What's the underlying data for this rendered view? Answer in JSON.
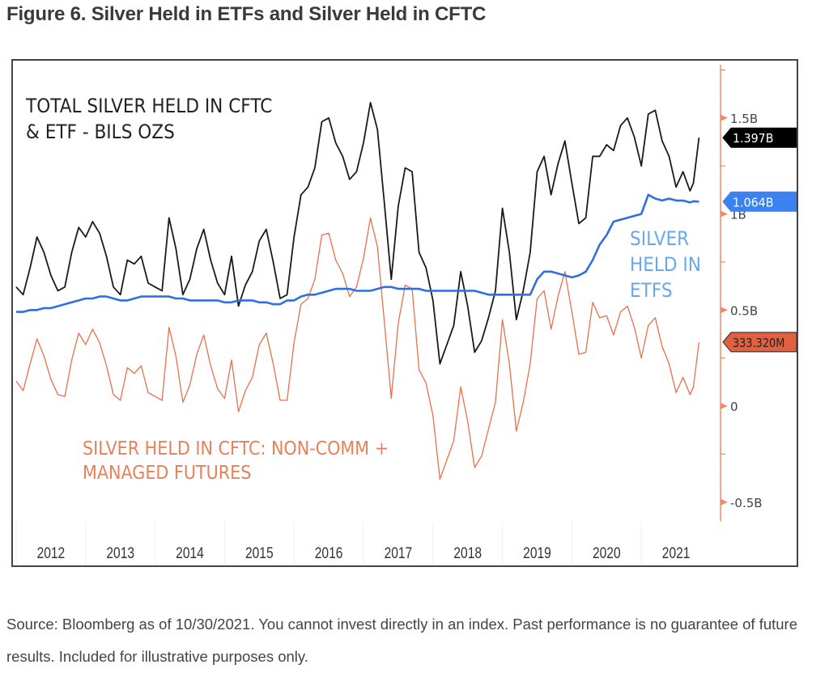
{
  "figure": {
    "title": "Figure 6. Silver Held in ETFs and Silver Held in CFTC",
    "source_note": "Source: Bloomberg as of 10/30/2021. You cannot invest directly in an index. Past performance is no guarantee of future results. Included for illustrative purposes only."
  },
  "chart_data": {
    "type": "line",
    "title": "Figure 6. Silver Held in ETFs and Silver Held in CFTC",
    "xlabel": "",
    "ylabel": "",
    "x_ticks": [
      "2012",
      "2013",
      "2014",
      "2015",
      "2016",
      "2017",
      "2018",
      "2019",
      "2020",
      "2021"
    ],
    "xlim": [
      2012.0,
      2022.0
    ],
    "y_axis": {
      "side": "right",
      "ticks": [
        "1.5B",
        "1B",
        "0.5B",
        "0",
        "-0.5B"
      ],
      "tick_values": [
        1.5,
        1.0,
        0.5,
        0.0,
        -0.5
      ],
      "ylim": [
        -0.6,
        1.95
      ],
      "units": "billion ounces"
    },
    "grid": false,
    "legend": "annotations in plot",
    "annotations": [
      {
        "text_lines": [
          "TOTAL SILVER HELD IN CFTC",
          "& ETF - BILS OZS"
        ],
        "color": "#222222",
        "position": "top-left"
      },
      {
        "text_lines": [
          "SILVER",
          "HELD IN",
          "ETFS"
        ],
        "color": "#6aa8ec",
        "position": "right-middle"
      },
      {
        "text_lines": [
          "SILVER HELD IN CFTC: NON-COMM +",
          "MANAGED FUTURES"
        ],
        "color": "#e8805a",
        "position": "bottom-left"
      }
    ],
    "last_value_labels": [
      {
        "series": "Total",
        "text": "1.397B",
        "bg": "#000000",
        "fg": "#ffffff"
      },
      {
        "series": "ETF",
        "text": "1.064B",
        "bg": "#3b82f0",
        "fg": "#ffffff"
      },
      {
        "series": "CFTC",
        "text": "333.320M",
        "bg": "#e06040",
        "fg": "#222222"
      }
    ],
    "x": [
      2012.0,
      2012.1,
      2012.2,
      2012.3,
      2012.4,
      2012.5,
      2012.6,
      2012.7,
      2012.8,
      2012.9,
      2013.0,
      2013.1,
      2013.2,
      2013.3,
      2013.4,
      2013.5,
      2013.6,
      2013.7,
      2013.8,
      2013.9,
      2014.0,
      2014.1,
      2014.2,
      2014.3,
      2014.4,
      2014.5,
      2014.6,
      2014.7,
      2014.8,
      2014.9,
      2015.0,
      2015.1,
      2015.2,
      2015.3,
      2015.4,
      2015.5,
      2015.6,
      2015.7,
      2015.8,
      2015.9,
      2016.0,
      2016.1,
      2016.2,
      2016.3,
      2016.4,
      2016.5,
      2016.6,
      2016.7,
      2016.8,
      2016.9,
      2017.0,
      2017.1,
      2017.2,
      2017.3,
      2017.4,
      2017.5,
      2017.6,
      2017.7,
      2017.8,
      2017.9,
      2018.0,
      2018.1,
      2018.2,
      2018.3,
      2018.4,
      2018.5,
      2018.6,
      2018.7,
      2018.8,
      2018.9,
      2019.0,
      2019.1,
      2019.2,
      2019.3,
      2019.4,
      2019.5,
      2019.6,
      2019.7,
      2019.8,
      2019.9,
      2020.0,
      2020.1,
      2020.2,
      2020.3,
      2020.4,
      2020.5,
      2020.6,
      2020.7,
      2020.8,
      2020.9,
      2021.0,
      2021.1,
      2021.2,
      2021.3,
      2021.4,
      2021.5,
      2021.6,
      2021.7,
      2021.75,
      2021.83
    ],
    "series": [
      {
        "name": "Total Silver Held in CFTC & ETF",
        "color": "#1a1a1a",
        "values": [
          0.62,
          0.58,
          0.72,
          0.88,
          0.8,
          0.68,
          0.6,
          0.62,
          0.8,
          0.93,
          0.88,
          0.96,
          0.9,
          0.78,
          0.62,
          0.58,
          0.76,
          0.74,
          0.78,
          0.64,
          0.62,
          0.6,
          0.98,
          0.82,
          0.58,
          0.66,
          0.82,
          0.92,
          0.76,
          0.64,
          0.58,
          0.78,
          0.52,
          0.63,
          0.7,
          0.86,
          0.92,
          0.75,
          0.56,
          0.58,
          0.88,
          1.1,
          1.14,
          1.24,
          1.48,
          1.5,
          1.37,
          1.3,
          1.18,
          1.22,
          1.37,
          1.58,
          1.44,
          1.06,
          0.66,
          1.04,
          1.24,
          1.22,
          0.8,
          0.72,
          0.55,
          0.22,
          0.32,
          0.42,
          0.7,
          0.52,
          0.28,
          0.34,
          0.46,
          0.6,
          1.03,
          0.8,
          0.45,
          0.6,
          0.8,
          1.22,
          1.3,
          1.1,
          1.26,
          1.38,
          1.16,
          0.95,
          0.98,
          1.3,
          1.3,
          1.36,
          1.33,
          1.46,
          1.5,
          1.4,
          1.25,
          1.52,
          1.54,
          1.38,
          1.3,
          1.14,
          1.22,
          1.12,
          1.16,
          1.397
        ]
      },
      {
        "name": "Silver Held in ETFs",
        "color": "#2f6fe0",
        "values": [
          0.49,
          0.49,
          0.5,
          0.5,
          0.51,
          0.51,
          0.52,
          0.53,
          0.54,
          0.55,
          0.56,
          0.56,
          0.57,
          0.57,
          0.56,
          0.55,
          0.55,
          0.56,
          0.57,
          0.57,
          0.57,
          0.57,
          0.57,
          0.56,
          0.56,
          0.55,
          0.55,
          0.55,
          0.55,
          0.55,
          0.54,
          0.54,
          0.55,
          0.55,
          0.55,
          0.54,
          0.54,
          0.53,
          0.53,
          0.55,
          0.55,
          0.57,
          0.58,
          0.58,
          0.59,
          0.6,
          0.61,
          0.61,
          0.61,
          0.6,
          0.6,
          0.6,
          0.61,
          0.62,
          0.62,
          0.61,
          0.61,
          0.61,
          0.61,
          0.6,
          0.6,
          0.6,
          0.6,
          0.6,
          0.6,
          0.6,
          0.6,
          0.59,
          0.58,
          0.58,
          0.58,
          0.58,
          0.58,
          0.58,
          0.58,
          0.66,
          0.7,
          0.7,
          0.69,
          0.68,
          0.67,
          0.68,
          0.7,
          0.76,
          0.84,
          0.89,
          0.96,
          0.97,
          0.98,
          0.99,
          1.0,
          1.1,
          1.08,
          1.07,
          1.08,
          1.07,
          1.07,
          1.06,
          1.066,
          1.064
        ]
      },
      {
        "name": "Silver Held in CFTC: Non-Comm + Managed Futures",
        "color": "#e8704a",
        "values": [
          0.13,
          0.08,
          0.22,
          0.35,
          0.26,
          0.14,
          0.06,
          0.05,
          0.24,
          0.38,
          0.32,
          0.4,
          0.33,
          0.21,
          0.06,
          0.03,
          0.2,
          0.17,
          0.21,
          0.07,
          0.05,
          0.03,
          0.41,
          0.26,
          0.02,
          0.11,
          0.27,
          0.37,
          0.21,
          0.09,
          0.04,
          0.24,
          -0.03,
          0.08,
          0.15,
          0.32,
          0.38,
          0.22,
          0.03,
          0.03,
          0.33,
          0.53,
          0.56,
          0.66,
          0.89,
          0.9,
          0.76,
          0.69,
          0.57,
          0.62,
          0.77,
          0.98,
          0.83,
          0.44,
          0.04,
          0.43,
          0.63,
          0.61,
          0.19,
          0.12,
          -0.05,
          -0.38,
          -0.28,
          -0.18,
          0.1,
          -0.08,
          -0.32,
          -0.26,
          -0.12,
          0.02,
          0.45,
          0.22,
          -0.13,
          0.02,
          0.22,
          0.56,
          0.6,
          0.4,
          0.57,
          0.7,
          0.49,
          0.27,
          0.28,
          0.54,
          0.46,
          0.47,
          0.37,
          0.49,
          0.52,
          0.41,
          0.25,
          0.42,
          0.46,
          0.31,
          0.22,
          0.07,
          0.15,
          0.06,
          0.1,
          0.333
        ]
      }
    ]
  }
}
